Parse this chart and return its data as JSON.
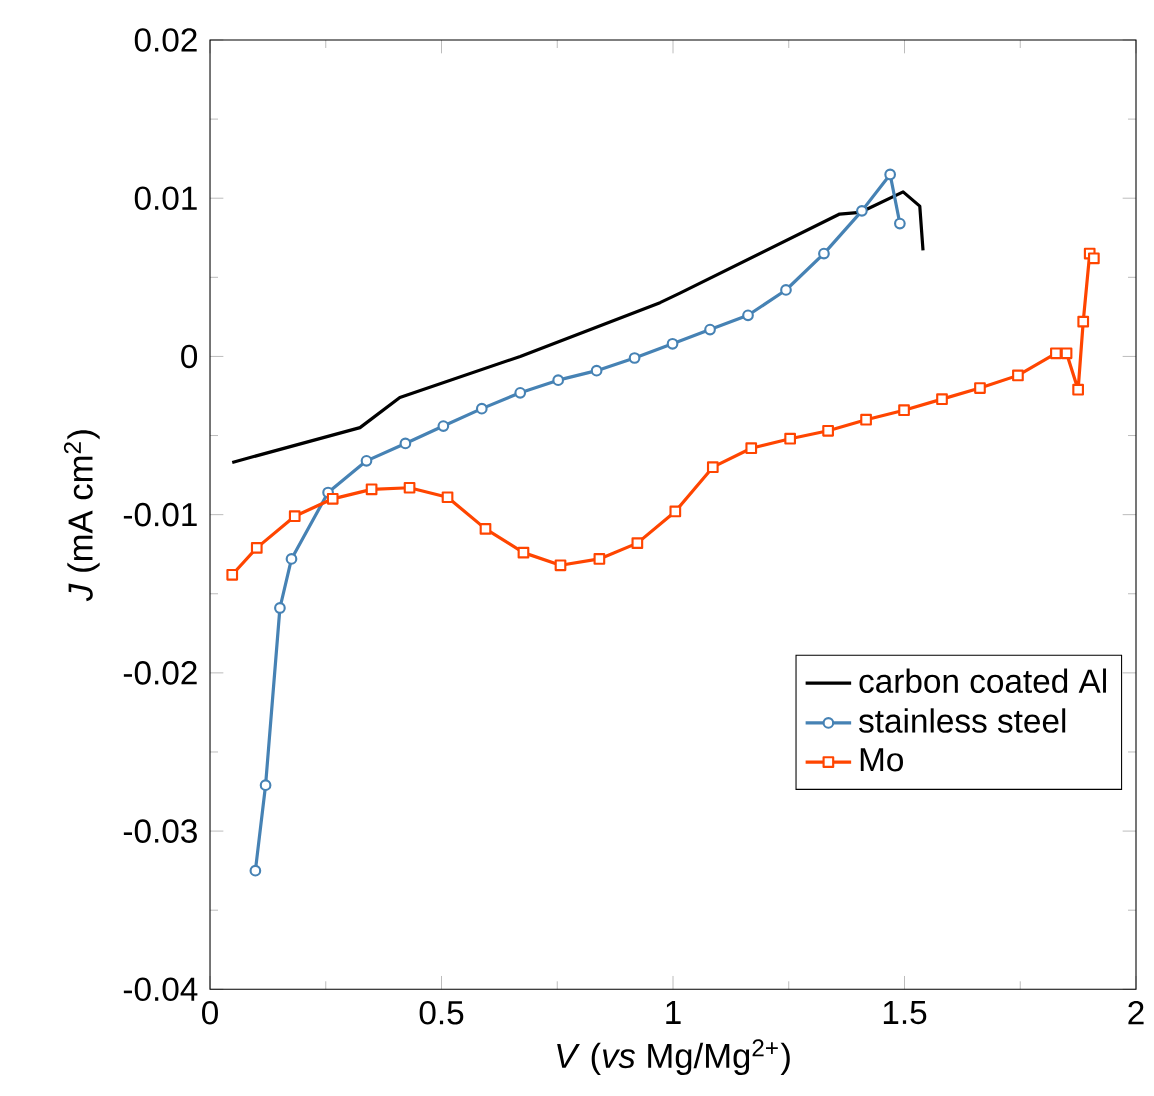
{
  "chart_data": {
    "type": "line",
    "xlabel": "*V* (*vs* Mg/Mg$^{2+}$)",
    "ylabel": "*J* (mA cm$^{2}$)",
    "xlim": [
      0,
      2
    ],
    "ylim": [
      -0.04,
      0.02
    ],
    "xticks": [
      0,
      0.5,
      1,
      1.5,
      2
    ],
    "yticks": [
      -0.04,
      -0.03,
      -0.02,
      -0.01,
      0,
      0.01,
      0.02
    ],
    "legend": "bottom right",
    "line_style": "solid",
    "series": [
      {
        "name": "carbon coated Al",
        "color": "#000000",
        "marker": "none",
        "x": [
          0.048,
          0.324,
          0.41,
          0.67,
          0.972,
          1.015,
          1.36,
          1.404,
          1.497,
          1.533,
          1.54
        ],
        "values": [
          -0.0067,
          -0.0045,
          -0.0026,
          0.0,
          0.0034,
          0.004,
          0.009,
          0.0091,
          0.0104,
          0.0095,
          0.0067
        ]
      },
      {
        "name": "stainless steel",
        "color": "#4682b4",
        "marker": "circle",
        "x": [
          0.098,
          0.12,
          0.151,
          0.176,
          0.255,
          0.338,
          0.422,
          0.504,
          0.587,
          0.67,
          0.752,
          0.835,
          0.917,
          0.999,
          1.08,
          1.162,
          1.244,
          1.326,
          1.408,
          1.469,
          1.49
        ],
        "values": [
          -0.0325,
          -0.0271,
          -0.0159,
          -0.0128,
          -0.0086,
          -0.0066,
          -0.0055,
          -0.0044,
          -0.0033,
          -0.0023,
          -0.0015,
          -0.0009,
          -0.0001,
          0.0008,
          0.0017,
          0.0026,
          0.0042,
          0.0065,
          0.0092,
          0.0115,
          0.0084
        ]
      },
      {
        "name": "Mo",
        "color": "#ff4500",
        "marker": "square",
        "x": [
          0.048,
          0.101,
          0.183,
          0.265,
          0.349,
          0.431,
          0.513,
          0.595,
          0.677,
          0.757,
          0.841,
          0.923,
          1.005,
          1.086,
          1.169,
          1.253,
          1.335,
          1.417,
          1.499,
          1.581,
          1.663,
          1.745,
          1.827,
          1.85,
          1.875,
          1.886,
          1.9,
          1.909
        ],
        "values": [
          -0.0138,
          -0.0121,
          -0.0101,
          -0.009,
          -0.0084,
          -0.0083,
          -0.0089,
          -0.0109,
          -0.0124,
          -0.0132,
          -0.0128,
          -0.0118,
          -0.0098,
          -0.007,
          -0.0058,
          -0.0052,
          -0.0047,
          -0.004,
          -0.0034,
          -0.0027,
          -0.002,
          -0.0012,
          0.0002,
          0.0002,
          -0.0021,
          0.0022,
          0.0065,
          0.0062
        ]
      }
    ]
  }
}
